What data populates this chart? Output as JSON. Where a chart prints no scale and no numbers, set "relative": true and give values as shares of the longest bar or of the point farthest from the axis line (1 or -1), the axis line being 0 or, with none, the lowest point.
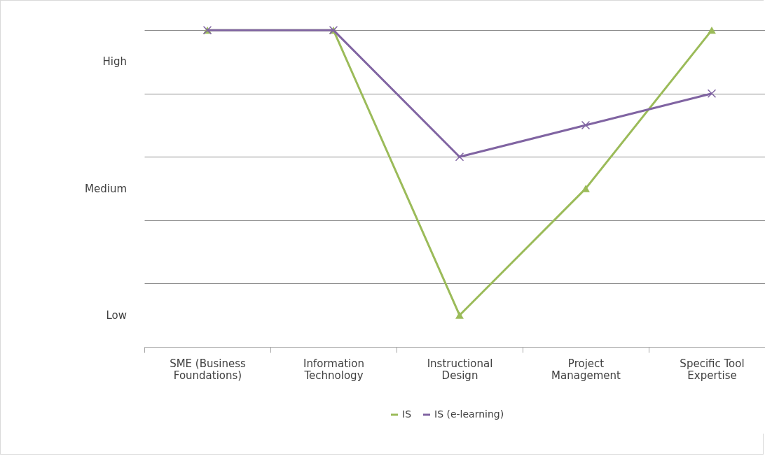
{
  "chart_data": {
    "type": "line",
    "categories": [
      "SME (Business Foundations)",
      "Information Technology",
      "Instructional Design",
      "Project Management",
      "Specific Tool Expertise"
    ],
    "series": [
      {
        "name": "IS",
        "color": "#9bbb59",
        "marker": "triangle",
        "values": [
          1,
          1,
          0.1,
          0.5,
          1
        ]
      },
      {
        "name": "IS (e-learning)",
        "color": "#8064a2",
        "marker": "cross",
        "values": [
          1,
          1,
          0.6,
          0.7,
          0.8
        ]
      }
    ],
    "relative": true,
    "annotations": [
      "High",
      "Medium",
      "Low"
    ],
    "grid": "y",
    "legend": "bottom",
    "line_style": "solid"
  }
}
